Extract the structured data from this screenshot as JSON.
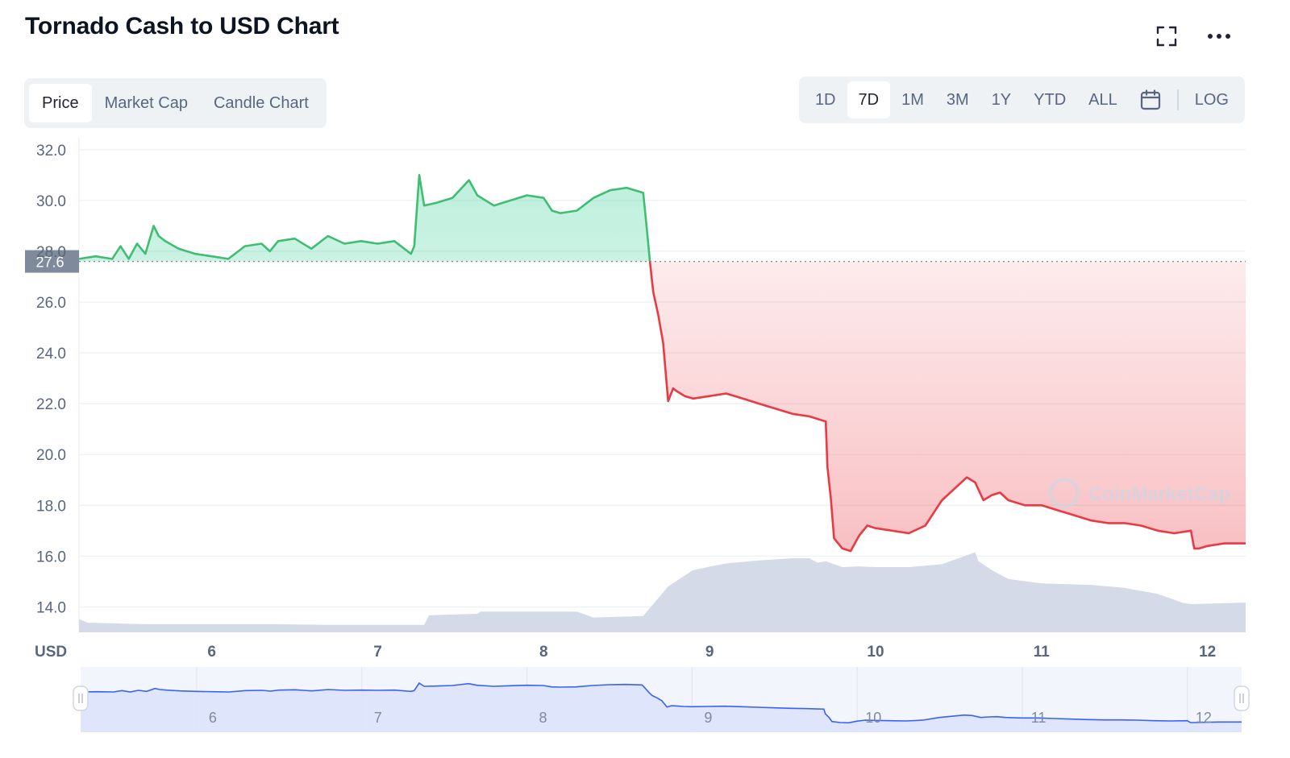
{
  "header": {
    "title": "Tornado Cash to USD Chart",
    "fullscreen_icon": "fullscreen-icon",
    "more_icon": "more-horizontal-icon"
  },
  "tabs_left": [
    {
      "label": "Price",
      "active": true
    },
    {
      "label": "Market Cap",
      "active": false
    },
    {
      "label": "Candle Chart",
      "active": false
    }
  ],
  "tabs_right": [
    {
      "label": "1D",
      "active": false
    },
    {
      "label": "7D",
      "active": true
    },
    {
      "label": "1M",
      "active": false
    },
    {
      "label": "3M",
      "active": false
    },
    {
      "label": "1Y",
      "active": false
    },
    {
      "label": "YTD",
      "active": false
    },
    {
      "label": "ALL",
      "active": false
    }
  ],
  "calendar_icon": "calendar-icon",
  "log_label": "LOG",
  "colors": {
    "up": "#16c784",
    "up_line": "#3fbe72",
    "down_line": "#ea3943",
    "volume": "#cfd6e4",
    "navigator_line": "#3861fb",
    "navigator_fill": "#dde3fb",
    "grid": "#eff2f5",
    "text": "#58667e"
  },
  "watermark": "CoinMarketCap",
  "chart_data": {
    "type": "line",
    "title": "Tornado Cash to USD Chart",
    "ylabel": "USD",
    "y_ticks": [
      "14.0",
      "16.0",
      "18.0",
      "20.0",
      "22.0",
      "24.0",
      "26.0",
      "28.0",
      "30.0",
      "32.0"
    ],
    "ylim": [
      13.0,
      32.5
    ],
    "x_ticks": [
      "6",
      "7",
      "8",
      "9",
      "10",
      "11",
      "12"
    ],
    "xlim": [
      5.2,
      12.23
    ],
    "baseline_price": 27.6,
    "baseline_label": "27.6",
    "series": [
      {
        "role": "price",
        "x": [
          5.2,
          5.3,
          5.4,
          5.45,
          5.5,
          5.55,
          5.6,
          5.65,
          5.68,
          5.72,
          5.8,
          5.9,
          6.0,
          6.1,
          6.2,
          6.3,
          6.35,
          6.4,
          6.5,
          6.6,
          6.7,
          6.8,
          6.9,
          7.0,
          7.1,
          7.2,
          7.22,
          7.25,
          7.28,
          7.35,
          7.45,
          7.55,
          7.6,
          7.7,
          7.8,
          7.9,
          8.0,
          8.05,
          8.1,
          8.2,
          8.3,
          8.4,
          8.5,
          8.6,
          8.62,
          8.64,
          8.66,
          8.69,
          8.72,
          8.75,
          8.78,
          8.8,
          8.85,
          8.9,
          9.0,
          9.1,
          9.2,
          9.3,
          9.4,
          9.5,
          9.6,
          9.7,
          9.71,
          9.73,
          9.75,
          9.8,
          9.85,
          9.9,
          9.95,
          10.0,
          10.1,
          10.2,
          10.3,
          10.4,
          10.5,
          10.55,
          10.6,
          10.65,
          10.7,
          10.75,
          10.8,
          10.9,
          11.0,
          11.1,
          11.2,
          11.3,
          11.4,
          11.5,
          11.6,
          11.7,
          11.8,
          11.9,
          11.92,
          11.95,
          12.0,
          12.1,
          12.23
        ],
        "values": [
          27.7,
          27.8,
          27.7,
          28.2,
          27.7,
          28.3,
          27.9,
          29.0,
          28.6,
          28.4,
          28.1,
          27.9,
          27.8,
          27.7,
          28.2,
          28.3,
          28.0,
          28.4,
          28.5,
          28.1,
          28.6,
          28.3,
          28.4,
          28.3,
          28.4,
          27.9,
          28.2,
          31.0,
          29.8,
          29.9,
          30.1,
          30.8,
          30.2,
          29.8,
          30.0,
          30.2,
          30.1,
          29.6,
          29.5,
          29.6,
          30.1,
          30.4,
          30.5,
          30.3,
          29.0,
          27.6,
          26.4,
          25.5,
          24.4,
          22.1,
          22.6,
          22.5,
          22.3,
          22.2,
          22.3,
          22.4,
          22.2,
          22.0,
          21.8,
          21.6,
          21.5,
          21.3,
          19.5,
          18.3,
          16.7,
          16.3,
          16.2,
          16.8,
          17.2,
          17.1,
          17.0,
          16.9,
          17.2,
          18.2,
          18.8,
          19.1,
          18.9,
          18.2,
          18.4,
          18.5,
          18.2,
          18.0,
          18.0,
          17.8,
          17.6,
          17.4,
          17.3,
          17.3,
          17.2,
          17.0,
          16.9,
          17.0,
          16.3,
          16.3,
          16.4,
          16.5,
          16.5
        ]
      },
      {
        "role": "volume",
        "x": [
          5.2,
          5.25,
          5.6,
          6.0,
          6.4,
          6.7,
          7.0,
          7.28,
          7.31,
          7.6,
          7.62,
          8.2,
          8.3,
          8.6,
          8.75,
          8.9,
          9.1,
          9.3,
          9.5,
          9.6,
          9.65,
          9.7,
          9.75,
          9.8,
          9.9,
          10.0,
          10.2,
          10.4,
          10.5,
          10.6,
          10.62,
          10.7,
          10.8,
          11.0,
          11.3,
          11.5,
          11.7,
          11.85,
          11.9,
          12.2,
          12.23
        ],
        "values": [
          0.18,
          0.13,
          0.11,
          0.11,
          0.11,
          0.1,
          0.1,
          0.1,
          0.23,
          0.25,
          0.28,
          0.28,
          0.2,
          0.22,
          0.62,
          0.84,
          0.93,
          0.97,
          1.0,
          1.0,
          0.94,
          0.96,
          0.92,
          0.88,
          0.89,
          0.88,
          0.88,
          0.92,
          1.0,
          1.08,
          0.96,
          0.84,
          0.72,
          0.66,
          0.64,
          0.6,
          0.52,
          0.4,
          0.38,
          0.4,
          0.4
        ]
      }
    ],
    "navigator": {
      "x_ticks": [
        "6",
        "7",
        "8",
        "9",
        "10",
        "11",
        "12"
      ]
    }
  }
}
